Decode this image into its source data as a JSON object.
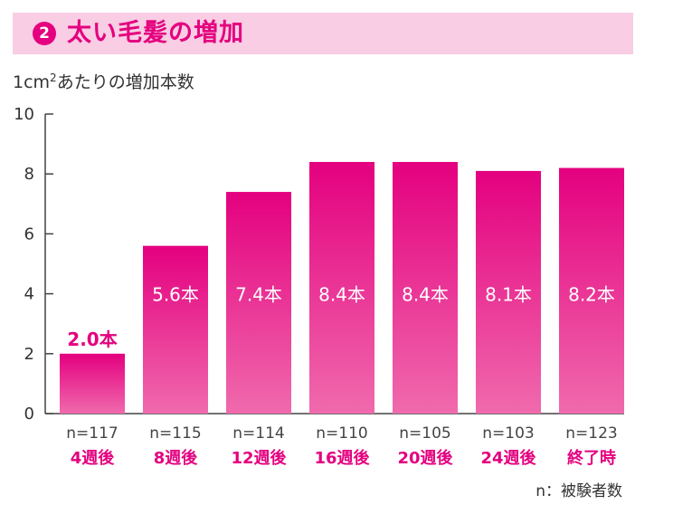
{
  "header": {
    "badge": "2",
    "title": "太い毛髪の増加"
  },
  "unit_label": {
    "text": "1cm",
    "sup": "2",
    "rest": "あたりの増加本数"
  },
  "footnote": "n：被験者数",
  "colors": {
    "accent": "#e4007f",
    "bar_top": "#e4007f",
    "bar_bottom": "#f06aad",
    "header_bg": "#f9cde3"
  },
  "chart_data": {
    "type": "bar",
    "categories": [
      "4週後",
      "8週後",
      "12週後",
      "16週後",
      "20週後",
      "24週後",
      "終了時"
    ],
    "n_labels": [
      "n=117",
      "n=115",
      "n=114",
      "n=110",
      "n=105",
      "n=103",
      "n=123"
    ],
    "values": [
      2.0,
      5.6,
      7.4,
      8.4,
      8.4,
      8.1,
      8.2
    ],
    "value_labels": [
      "2.0本",
      "5.6本",
      "7.4本",
      "8.4本",
      "8.4本",
      "8.1本",
      "8.2本"
    ],
    "ylim": [
      0,
      10
    ],
    "yticks": [
      0,
      2,
      4,
      6,
      8,
      10
    ],
    "grid": false,
    "legend": "none"
  }
}
